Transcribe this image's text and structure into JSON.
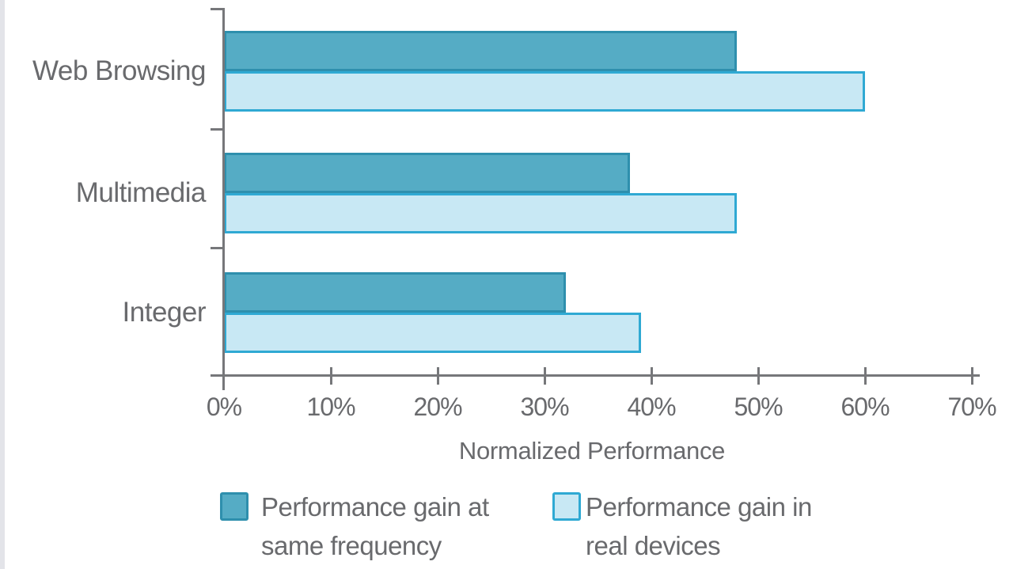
{
  "chart_data": {
    "type": "bar",
    "orientation": "horizontal",
    "title": "",
    "xlabel": "Normalized Performance",
    "ylabel": "",
    "categories": [
      "Web Browsing",
      "Multimedia",
      "Integer"
    ],
    "series": [
      {
        "name": "Performance gain at same frequency",
        "key": "same-frequency",
        "values": [
          48,
          38,
          32
        ],
        "fill_color": "#55acc5",
        "border_color": "#2e8fad"
      },
      {
        "name": "Performance gain in real devices",
        "key": "real-devices",
        "values": [
          60,
          48,
          39
        ],
        "fill_color": "#c8e8f4",
        "border_color": "#2fa9d3"
      }
    ],
    "xlim": [
      0,
      70
    ],
    "x_tick_values": [
      0,
      10,
      20,
      30,
      40,
      50,
      60,
      70
    ],
    "x_ticks": [
      "0%",
      "10%",
      "20%",
      "30%",
      "40%",
      "50%",
      "60%",
      "70%"
    ],
    "grid": false,
    "legend_position": "bottom",
    "legend": [
      {
        "line1": "Performance gain at",
        "line2": "same frequency"
      },
      {
        "line1": "Performance gain in",
        "line2": "real devices"
      }
    ]
  },
  "colors": {
    "axis": "#76777a",
    "text": "#696a6d",
    "background": "#ffffff",
    "edge_strip": "#e3e4e9",
    "series_dark": "#55acc5",
    "series_dark_border": "#2e8fad",
    "series_light": "#c8e8f4",
    "series_light_border": "#2fa9d3"
  }
}
